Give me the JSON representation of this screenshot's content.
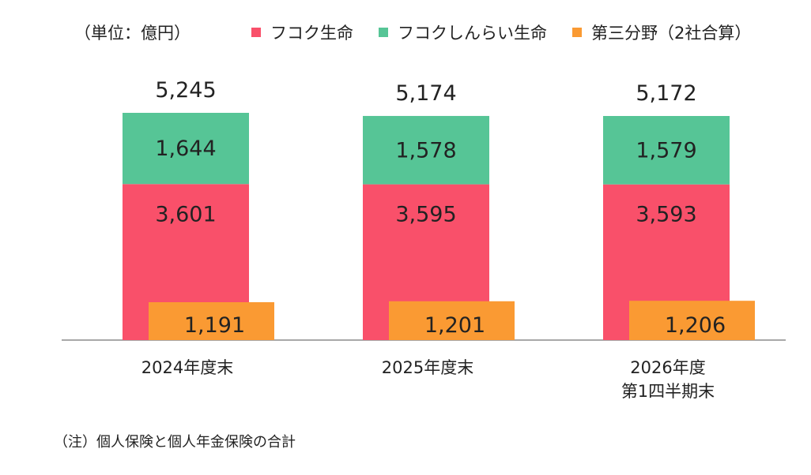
{
  "unit_label": "（単位：億円）",
  "note": "（注）個人保険と個人年金保険の合計",
  "colors": {
    "fukoku": "#f9506a",
    "shinrai": "#56c596",
    "third": "#fa9a33",
    "axis": "#8c8c8c"
  },
  "chart_data": {
    "type": "bar",
    "title": "",
    "xlabel": "",
    "ylabel": "",
    "categories": [
      "2024年度末",
      "2025年度末",
      "2026年度\n第1四半期末"
    ],
    "series": [
      {
        "name": "フコク生命",
        "values": [
          3601,
          3595,
          3593
        ],
        "labels": [
          "3,601",
          "3,595",
          "3,593"
        ],
        "stack": "main",
        "color_key": "fukoku"
      },
      {
        "name": "フコクしんらい生命",
        "values": [
          1644,
          1578,
          1579
        ],
        "labels": [
          "1,644",
          "1,578",
          "1,579"
        ],
        "stack": "main",
        "color_key": "shinrai"
      },
      {
        "name": "第三分野（2社合算）",
        "values": [
          1191,
          1201,
          1206
        ],
        "labels": [
          "1,191",
          "1,201",
          "1,206"
        ],
        "stack": "side",
        "color_key": "third"
      }
    ],
    "totals": [
      5245,
      5174,
      5172
    ],
    "total_labels": [
      "5,245",
      "5,174",
      "5,172"
    ],
    "ylim": [
      0,
      5800
    ],
    "grid": false,
    "legend_position": "top"
  }
}
